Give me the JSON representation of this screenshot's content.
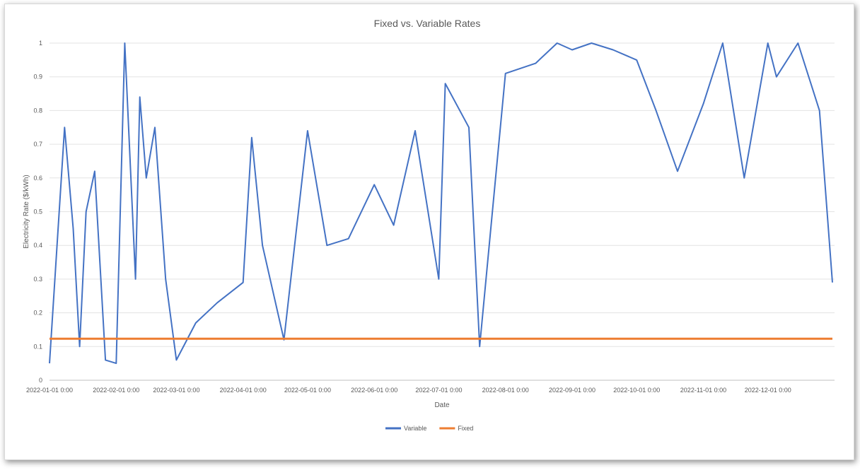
{
  "chart_data": {
    "type": "line",
    "title": "Fixed vs. Variable Rates",
    "xlabel": "Date",
    "ylabel": "Electricity Rate ($/kWh)",
    "ylim": [
      0,
      1
    ],
    "xlim": [
      "2022-01-01",
      "2022-12-31"
    ],
    "y_ticks": [
      "0",
      "0.1",
      "0.2",
      "0.3",
      "0.4",
      "0.5",
      "0.6",
      "0.7",
      "0.8",
      "0.9",
      "1"
    ],
    "x_ticks": [
      "2022-01-01 0:00",
      "2022-02-01 0:00",
      "2022-03-01 0:00",
      "2022-04-01 0:00",
      "2022-05-01 0:00",
      "2022-06-01 0:00",
      "2022-07-01 0:00",
      "2022-08-01 0:00",
      "2022-09-01 0:00",
      "2022-10-01 0:00",
      "2022-11-01 0:00",
      "2022-12-01 0:00"
    ],
    "grid": true,
    "legend_position": "bottom",
    "series": [
      {
        "name": "Variable",
        "color": "#4472c4",
        "x": [
          "2022-01-01",
          "2022-01-08",
          "2022-01-12",
          "2022-01-15",
          "2022-01-18",
          "2022-01-22",
          "2022-01-27",
          "2022-02-01",
          "2022-02-05",
          "2022-02-10",
          "2022-02-12",
          "2022-02-15",
          "2022-02-19",
          "2022-02-24",
          "2022-03-01",
          "2022-03-10",
          "2022-03-20",
          "2022-04-01",
          "2022-04-05",
          "2022-04-10",
          "2022-04-20",
          "2022-05-01",
          "2022-05-10",
          "2022-05-20",
          "2022-06-01",
          "2022-06-10",
          "2022-06-20",
          "2022-07-01",
          "2022-07-04",
          "2022-07-15",
          "2022-07-20",
          "2022-08-01",
          "2022-08-15",
          "2022-08-25",
          "2022-09-01",
          "2022-09-10",
          "2022-09-20",
          "2022-10-01",
          "2022-10-10",
          "2022-10-20",
          "2022-11-01",
          "2022-11-10",
          "2022-11-20",
          "2022-12-01",
          "2022-12-05",
          "2022-12-15",
          "2022-12-25",
          "2022-12-31"
        ],
        "values": [
          0.05,
          0.75,
          0.45,
          0.1,
          0.5,
          0.62,
          0.06,
          0.05,
          1.0,
          0.3,
          0.84,
          0.6,
          0.75,
          0.3,
          0.06,
          0.17,
          0.23,
          0.29,
          0.72,
          0.4,
          0.12,
          0.74,
          0.4,
          0.42,
          0.58,
          0.46,
          0.74,
          0.3,
          0.88,
          0.75,
          0.1,
          0.91,
          0.94,
          1.0,
          0.98,
          1.0,
          0.98,
          0.95,
          0.8,
          0.62,
          0.82,
          1.0,
          0.6,
          1.0,
          0.9,
          1.0,
          0.8,
          0.29
        ]
      },
      {
        "name": "Fixed",
        "color": "#ed7d31",
        "x": [
          "2022-01-01",
          "2022-12-31"
        ],
        "values": [
          0.123,
          0.123
        ]
      }
    ]
  }
}
